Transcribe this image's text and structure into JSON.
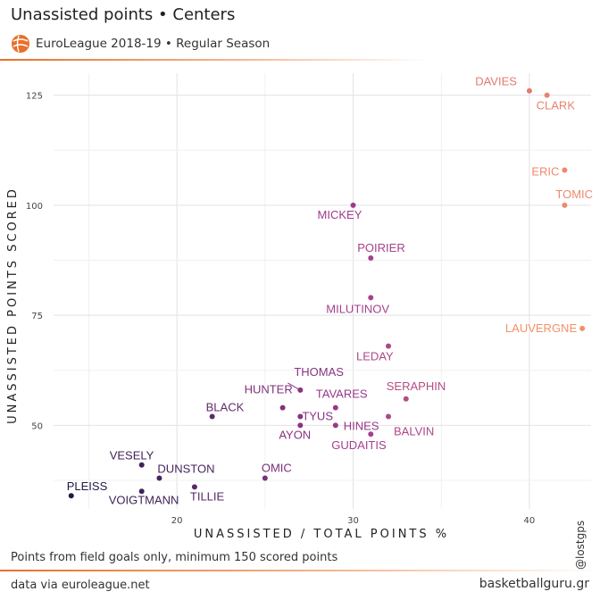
{
  "header": {
    "title": "Unassisted points • Centers",
    "subtitle": "EuroLeague 2018-19 • Regular Season",
    "logo_icon": "euroleague-logo-icon"
  },
  "footer": {
    "caption": "Points from field goals only, minimum 150 scored points",
    "source": "data via euroleague.net",
    "site": "basketballguru.gr",
    "handle": "@lostgps"
  },
  "colors": {
    "accent": "#e8702a",
    "low": "#1e1b45",
    "mid": "#a03a8e",
    "high": "#f4906a"
  },
  "chart_data": {
    "type": "scatter",
    "xlabel": "UNASSISTED / TOTAL POINTS %",
    "ylabel": "UNASSISTED POINTS SCORED",
    "xlim": [
      13,
      43.5
    ],
    "ylim": [
      31,
      130
    ],
    "xticks": [
      20,
      30,
      40
    ],
    "yticks": [
      50,
      75,
      100,
      125
    ],
    "grid": true,
    "points": [
      {
        "label": "DAVIES",
        "x": 40,
        "y": 126
      },
      {
        "label": "CLARK",
        "x": 41,
        "y": 125
      },
      {
        "label": "ERIC",
        "x": 42,
        "y": 108
      },
      {
        "label": "TOMIC",
        "x": 42,
        "y": 100
      },
      {
        "label": "LAUVERGNE",
        "x": 43,
        "y": 72
      },
      {
        "label": "MICKEY",
        "x": 30,
        "y": 100
      },
      {
        "label": "POIRIER",
        "x": 31,
        "y": 88
      },
      {
        "label": "MILUTINOV",
        "x": 31,
        "y": 79
      },
      {
        "label": "LEDAY",
        "x": 32,
        "y": 68
      },
      {
        "label": "SERAPHIN",
        "x": 33,
        "y": 56
      },
      {
        "label": "BALVIN",
        "x": 32,
        "y": 52
      },
      {
        "label": "GUDAITIS",
        "x": 31,
        "y": 48
      },
      {
        "label": "HINES",
        "x": 29,
        "y": 50
      },
      {
        "label": "TAVARES",
        "x": 29,
        "y": 54
      },
      {
        "label": "THOMAS",
        "x": 27,
        "y": 58
      },
      {
        "label": "TYUS",
        "x": 27,
        "y": 52
      },
      {
        "label": "AYON",
        "x": 27,
        "y": 50
      },
      {
        "label": "HUNTER",
        "x": 26,
        "y": 54
      },
      {
        "label": "BLACK",
        "x": 22,
        "y": 52
      },
      {
        "label": "OMIC",
        "x": 25,
        "y": 38
      },
      {
        "label": "TILLIE",
        "x": 21,
        "y": 36
      },
      {
        "label": "DUNSTON",
        "x": 19,
        "y": 38
      },
      {
        "label": "VESELY",
        "x": 18,
        "y": 41
      },
      {
        "label": "VOIGTMANN",
        "x": 18,
        "y": 35
      },
      {
        "label": "PLEISS",
        "x": 14,
        "y": 34
      }
    ]
  }
}
